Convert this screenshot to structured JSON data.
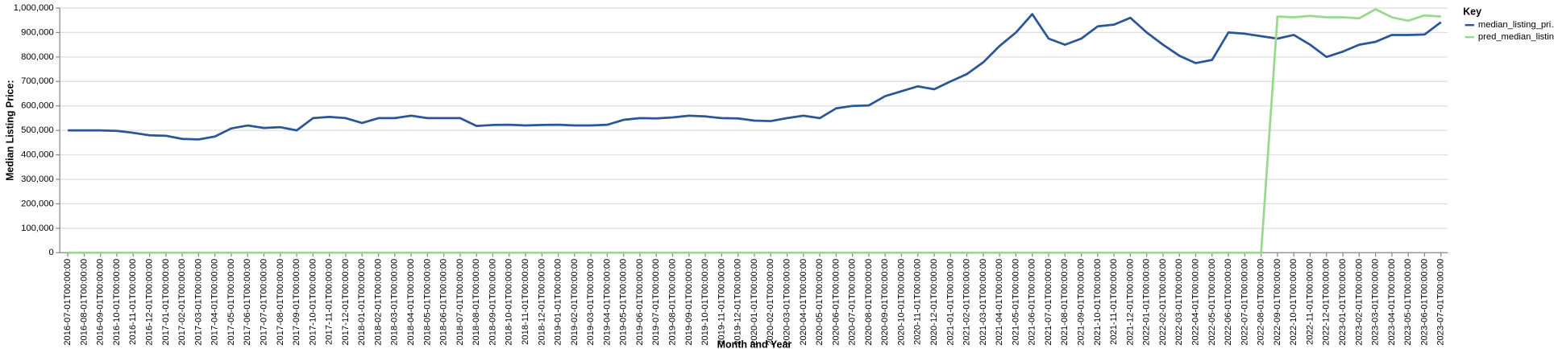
{
  "chart_data": {
    "type": "line",
    "x_label": "Month and Year",
    "y_label": "Median Listing Price:",
    "legend_title": "Key",
    "legend_position": "right",
    "grid": true,
    "categories": [
      "2016-07-01T00:00:00",
      "2016-08-01T00:00:00",
      "2016-09-01T00:00:00",
      "2016-10-01T00:00:00",
      "2016-11-01T00:00:00",
      "2016-12-01T00:00:00",
      "2017-01-01T00:00:00",
      "2017-02-01T00:00:00",
      "2017-03-01T00:00:00",
      "2017-04-01T00:00:00",
      "2017-05-01T00:00:00",
      "2017-06-01T00:00:00",
      "2017-07-01T00:00:00",
      "2017-08-01T00:00:00",
      "2017-09-01T00:00:00",
      "2017-10-01T00:00:00",
      "2017-11-01T00:00:00",
      "2017-12-01T00:00:00",
      "2018-01-01T00:00:00",
      "2018-02-01T00:00:00",
      "2018-03-01T00:00:00",
      "2018-04-01T00:00:00",
      "2018-05-01T00:00:00",
      "2018-06-01T00:00:00",
      "2018-07-01T00:00:00",
      "2018-08-01T00:00:00",
      "2018-09-01T00:00:00",
      "2018-10-01T00:00:00",
      "2018-11-01T00:00:00",
      "2018-12-01T00:00:00",
      "2019-01-01T00:00:00",
      "2019-02-01T00:00:00",
      "2019-03-01T00:00:00",
      "2019-04-01T00:00:00",
      "2019-05-01T00:00:00",
      "2019-06-01T00:00:00",
      "2019-07-01T00:00:00",
      "2019-08-01T00:00:00",
      "2019-09-01T00:00:00",
      "2019-10-01T00:00:00",
      "2019-11-01T00:00:00",
      "2019-12-01T00:00:00",
      "2020-01-01T00:00:00",
      "2020-02-01T00:00:00",
      "2020-03-01T00:00:00",
      "2020-04-01T00:00:00",
      "2020-05-01T00:00:00",
      "2020-06-01T00:00:00",
      "2020-07-01T00:00:00",
      "2020-08-01T00:00:00",
      "2020-09-01T00:00:00",
      "2020-10-01T00:00:00",
      "2020-11-01T00:00:00",
      "2020-12-01T00:00:00",
      "2021-01-01T00:00:00",
      "2021-02-01T00:00:00",
      "2021-03-01T00:00:00",
      "2021-04-01T00:00:00",
      "2021-05-01T00:00:00",
      "2021-06-01T00:00:00",
      "2021-07-01T00:00:00",
      "2021-08-01T00:00:00",
      "2021-09-01T00:00:00",
      "2021-10-01T00:00:00",
      "2021-11-01T00:00:00",
      "2021-12-01T00:00:00",
      "2022-01-01T00:00:00",
      "2022-02-01T00:00:00",
      "2022-03-01T00:00:00",
      "2022-04-01T00:00:00",
      "2022-05-01T00:00:00",
      "2022-06-01T00:00:00",
      "2022-07-01T00:00:00",
      "2022-08-01T00:00:00",
      "2022-09-01T00:00:00",
      "2022-10-01T00:00:00",
      "2022-11-01T00:00:00",
      "2022-12-01T00:00:00",
      "2023-01-01T00:00:00",
      "2023-02-01T00:00:00",
      "2023-03-01T00:00:00",
      "2023-04-01T00:00:00",
      "2023-05-01T00:00:00",
      "2023-06-01T00:00:00",
      "2023-07-01T00:00:00"
    ],
    "series": [
      {
        "name": "median_listing_pri…",
        "color": "#2a5599",
        "values": [
          500000,
          500000,
          500000,
          498000,
          490000,
          480000,
          478000,
          465000,
          463000,
          475000,
          508000,
          520000,
          510000,
          513000,
          500000,
          550000,
          555000,
          550000,
          530000,
          550000,
          550000,
          560000,
          550000,
          550000,
          550000,
          518000,
          522000,
          523000,
          520000,
          522000,
          523000,
          520000,
          520000,
          523000,
          543000,
          550000,
          549000,
          553000,
          560000,
          557000,
          550000,
          549000,
          540000,
          538000,
          550000,
          560000,
          550000,
          590000,
          600000,
          602000,
          640000,
          660000,
          680000,
          668000,
          700000,
          730000,
          778000,
          845000,
          900000,
          975000,
          875000,
          850000,
          875000,
          925000,
          932000,
          960000,
          900000,
          850000,
          805000,
          775000,
          788000,
          900000,
          895000,
          885000,
          875000,
          890000,
          850000,
          800000,
          822000,
          850000,
          862000,
          890000,
          890000,
          892000,
          942000
        ]
      },
      {
        "name": "pred_median_listin…",
        "color": "#98d98e",
        "values": [
          0,
          0,
          0,
          0,
          0,
          0,
          0,
          0,
          0,
          0,
          0,
          0,
          0,
          0,
          0,
          0,
          0,
          0,
          0,
          0,
          0,
          0,
          0,
          0,
          0,
          0,
          0,
          0,
          0,
          0,
          0,
          0,
          0,
          0,
          0,
          0,
          0,
          0,
          0,
          0,
          0,
          0,
          0,
          0,
          0,
          0,
          0,
          0,
          0,
          0,
          0,
          0,
          0,
          0,
          0,
          0,
          0,
          0,
          0,
          0,
          0,
          0,
          0,
          0,
          0,
          0,
          0,
          0,
          0,
          0,
          0,
          0,
          0,
          0,
          965000,
          962000,
          968000,
          962000,
          962000,
          958000,
          995000,
          962000,
          948000,
          970000,
          965000
        ]
      }
    ],
    "ylim": [
      0,
      1000000
    ],
    "yticks": [
      0,
      {
        "value": 100000,
        "label": "100,000"
      },
      {
        "value": 200000,
        "label": "200,000"
      },
      {
        "value": 300000,
        "label": "300,000"
      },
      {
        "value": 400000,
        "label": "400,000"
      },
      {
        "value": 500000,
        "label": "500,000"
      },
      {
        "value": 600000,
        "label": "600,000"
      },
      {
        "value": 700000,
        "label": "700,000"
      },
      {
        "value": 800000,
        "label": "800,000"
      },
      {
        "value": 900000,
        "label": "900,000"
      },
      {
        "value": 1000000,
        "label": "1,000,000"
      }
    ]
  }
}
